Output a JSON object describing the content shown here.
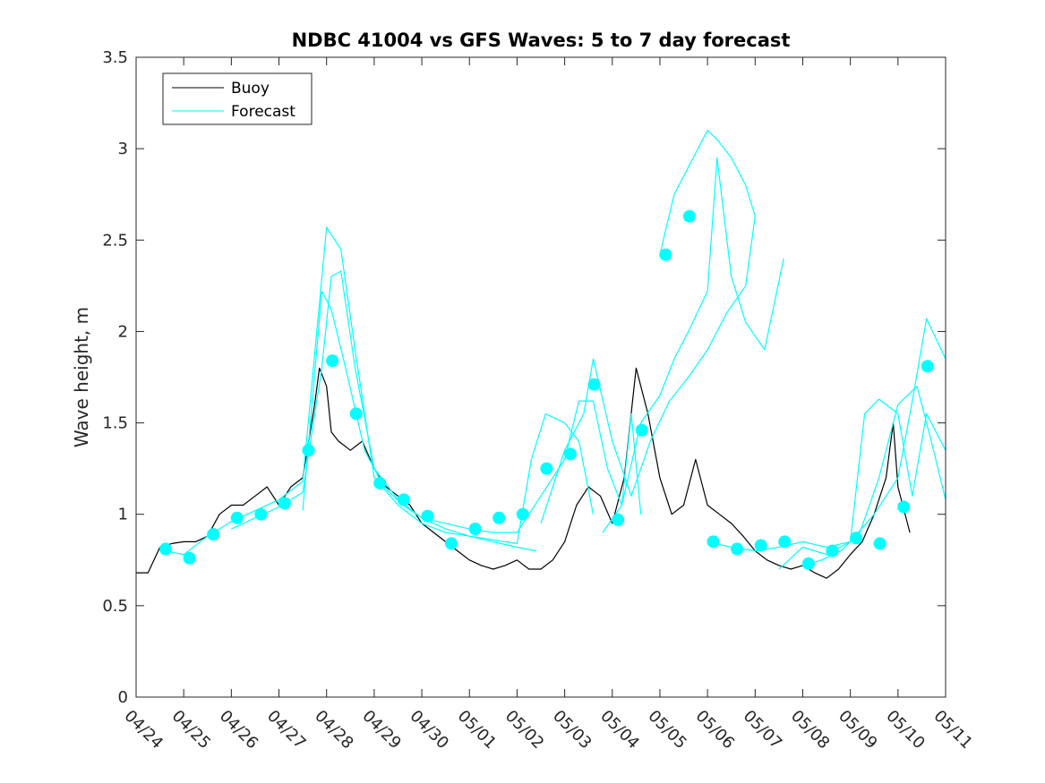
{
  "chart_data": {
    "type": "line",
    "title": "NDBC 41004 vs GFS Waves: 5 to 7 day forecast",
    "xlabel": "",
    "ylabel": "Wave height, m",
    "xlim": [
      0,
      17
    ],
    "ylim": [
      0,
      3.5
    ],
    "grid": false,
    "legend_position": "top-left",
    "x_tick_values": [
      0,
      1,
      2,
      3,
      4,
      5,
      6,
      7,
      8,
      9,
      10,
      11,
      12,
      13,
      14,
      15,
      16,
      17
    ],
    "x_tick_labels": [
      "04/24",
      "04/25",
      "04/26",
      "04/27",
      "04/28",
      "04/29",
      "04/30",
      "05/01",
      "05/02",
      "05/03",
      "05/04",
      "05/05",
      "05/06",
      "05/07",
      "05/08",
      "05/09",
      "05/10",
      "05/11"
    ],
    "y_tick_values": [
      0,
      0.5,
      1,
      1.5,
      2,
      2.5,
      3,
      3.5
    ],
    "y_tick_labels": [
      "0",
      "0.5",
      "1",
      "1.5",
      "2",
      "2.5",
      "3",
      "3.5"
    ],
    "colors": {
      "buoy": "#000000",
      "forecast": "#00ffff",
      "axes": "#262626"
    },
    "legend": [
      {
        "label": "Buoy",
        "color": "#000000"
      },
      {
        "label": "Forecast",
        "color": "#00ffff"
      }
    ],
    "series": [
      {
        "name": "Buoy",
        "color": "#000000",
        "x": [
          0.0,
          0.25,
          0.5,
          0.75,
          1.0,
          1.25,
          1.5,
          1.75,
          2.0,
          2.25,
          2.5,
          2.75,
          3.0,
          3.25,
          3.5,
          3.75,
          3.85,
          4.0,
          4.1,
          4.25,
          4.5,
          4.75,
          5.0,
          5.25,
          5.5,
          5.75,
          6.0,
          6.25,
          6.5,
          6.75,
          7.0,
          7.25,
          7.5,
          7.75,
          8.0,
          8.25,
          8.5,
          8.75,
          9.0,
          9.25,
          9.5,
          9.75,
          10.0,
          10.25,
          10.5,
          10.75,
          11.0,
          11.25,
          11.5,
          11.75,
          12.0,
          12.25,
          12.5,
          12.75,
          13.0,
          13.25,
          13.5,
          13.75,
          14.0,
          14.25,
          14.5,
          14.75,
          15.0,
          15.25,
          15.5,
          15.75,
          15.9,
          16.0,
          16.25
        ],
        "y": [
          0.68,
          0.68,
          0.82,
          0.84,
          0.85,
          0.85,
          0.88,
          1.0,
          1.05,
          1.05,
          1.1,
          1.15,
          1.05,
          1.15,
          1.2,
          1.6,
          1.8,
          1.7,
          1.45,
          1.4,
          1.35,
          1.4,
          1.25,
          1.15,
          1.1,
          1.05,
          0.95,
          0.9,
          0.85,
          0.8,
          0.75,
          0.72,
          0.7,
          0.72,
          0.75,
          0.7,
          0.7,
          0.75,
          0.85,
          1.05,
          1.15,
          1.1,
          0.95,
          1.2,
          1.8,
          1.55,
          1.2,
          1.0,
          1.05,
          1.3,
          1.05,
          1.0,
          0.95,
          0.88,
          0.8,
          0.75,
          0.72,
          0.7,
          0.72,
          0.68,
          0.65,
          0.7,
          0.78,
          0.85,
          1.0,
          1.2,
          1.5,
          1.15,
          0.9
        ]
      },
      {
        "name": "",
        "color": "#00ffff",
        "x": [
          0.6,
          1.0,
          1.5,
          2.0,
          2.5,
          3.0,
          3.5,
          4.0,
          4.3,
          4.6,
          5.0,
          5.5,
          6.0,
          6.5,
          7.0,
          7.5,
          8.0,
          8.4
        ],
        "y": [
          0.8,
          0.78,
          0.88,
          0.96,
          1.02,
          1.08,
          1.18,
          2.57,
          2.45,
          1.9,
          1.2,
          1.05,
          0.95,
          0.9,
          0.88,
          0.85,
          0.82,
          0.8
        ]
      },
      {
        "name": "",
        "color": "#00ffff",
        "x": [
          2.0,
          2.5,
          3.0,
          3.5,
          3.9,
          4.1,
          4.3,
          4.6,
          5.0,
          5.5,
          6.0,
          6.5,
          7.0,
          7.5,
          8.0,
          8.3,
          8.6,
          9.0,
          9.3,
          9.6
        ],
        "y": [
          0.92,
          0.98,
          1.04,
          1.12,
          1.8,
          2.3,
          2.33,
          1.8,
          1.25,
          1.08,
          0.98,
          0.92,
          0.88,
          0.86,
          0.84,
          1.3,
          1.55,
          1.5,
          1.4,
          1.0
        ]
      },
      {
        "name": "",
        "color": "#00ffff",
        "x": [
          3.5,
          3.9,
          4.1,
          4.4,
          4.8,
          5.2,
          5.6,
          6.0,
          6.5,
          7.0,
          7.5,
          8.0,
          8.5,
          9.0,
          9.3,
          9.6,
          9.9,
          10.2,
          10.4,
          10.6
        ],
        "y": [
          1.02,
          2.22,
          2.12,
          1.8,
          1.35,
          1.15,
          1.05,
          0.98,
          0.95,
          0.92,
          0.9,
          0.9,
          1.1,
          1.3,
          1.62,
          1.62,
          1.25,
          1.05,
          1.55,
          1.0
        ]
      },
      {
        "name": "",
        "color": "#00ffff",
        "x": [
          8.5,
          9.0,
          9.4,
          9.6,
          10.0,
          10.4,
          10.8,
          11.2,
          11.6,
          12.0,
          12.4,
          12.8,
          13.0
        ],
        "y": [
          0.95,
          1.35,
          1.55,
          1.85,
          1.4,
          1.1,
          1.4,
          1.62,
          1.75,
          1.9,
          2.1,
          2.25,
          2.63
        ]
      },
      {
        "name": "",
        "color": "#00ffff",
        "x": [
          9.8,
          10.2,
          10.6,
          11.0,
          11.3,
          11.6,
          12.0,
          12.2,
          12.5,
          12.8,
          13.2,
          13.6
        ],
        "y": [
          0.9,
          1.05,
          1.5,
          1.65,
          1.85,
          2.0,
          2.22,
          2.95,
          2.3,
          2.05,
          1.9,
          2.4
        ]
      },
      {
        "name": "",
        "color": "#00ffff",
        "x": [
          11.0,
          11.3,
          11.6,
          12.0,
          12.2,
          12.5,
          12.8,
          13.0
        ],
        "y": [
          2.42,
          2.75,
          2.9,
          3.1,
          3.05,
          2.95,
          2.8,
          2.63
        ]
      },
      {
        "name": "",
        "color": "#00ffff",
        "x": [
          12.0,
          12.5,
          13.0,
          13.5,
          14.0,
          14.5,
          15.0,
          15.3,
          15.6,
          16.0,
          16.3,
          16.6,
          17.0
        ],
        "y": [
          0.85,
          0.82,
          0.8,
          0.82,
          0.85,
          0.82,
          0.85,
          1.55,
          1.63,
          1.55,
          1.1,
          1.55,
          1.35
        ]
      },
      {
        "name": "",
        "color": "#00ffff",
        "x": [
          13.5,
          14.0,
          14.5,
          15.0,
          15.5,
          16.0,
          16.3,
          16.6,
          17.0
        ],
        "y": [
          0.7,
          0.82,
          0.78,
          0.85,
          1.0,
          1.2,
          1.62,
          2.07,
          1.85
        ]
      },
      {
        "name": "",
        "color": "#00ffff",
        "x": [
          14.0,
          14.4,
          14.8,
          15.2,
          15.6,
          16.0,
          16.4,
          16.7,
          17.0
        ],
        "y": [
          0.72,
          0.75,
          0.8,
          0.9,
          1.2,
          1.6,
          1.7,
          1.4,
          1.08
        ]
      },
      {
        "name": "Forecast",
        "color": "#00ffff",
        "marker": "dot",
        "x": [
          0.62,
          1.12,
          1.62,
          2.12,
          2.62,
          3.12,
          3.62,
          4.12,
          4.62,
          5.12,
          5.62,
          6.12,
          6.62,
          7.12,
          7.62,
          8.12,
          8.62,
          9.12,
          9.62,
          10.12,
          10.62,
          11.12,
          11.62,
          12.12,
          12.62,
          13.12,
          13.62,
          14.12,
          14.62,
          15.12,
          15.62,
          16.12,
          16.62
        ],
        "y": [
          0.81,
          0.76,
          0.89,
          0.98,
          1.0,
          1.06,
          1.35,
          1.84,
          1.55,
          1.17,
          1.08,
          0.99,
          0.84,
          0.92,
          0.98,
          1.0,
          1.25,
          1.33,
          1.71,
          0.97,
          1.46,
          2.42,
          2.63,
          0.85,
          0.81,
          0.83,
          0.85,
          0.73,
          0.8,
          0.87,
          0.84,
          1.04,
          1.81
        ]
      }
    ]
  }
}
